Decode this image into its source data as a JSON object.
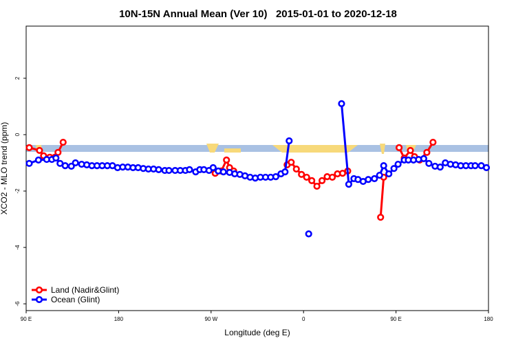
{
  "chart_data": {
    "type": "line",
    "title": "10N-15N Annual Mean (Ver 10)   2015-01-01 to 2020-12-18",
    "x_label": "Longitude (deg E)",
    "y_label": "XCO2 - MLO trend (ppm)",
    "xlim": [
      90,
      540
    ],
    "xticks": [
      {
        "value": 90,
        "label": "90 E"
      },
      {
        "value": 180,
        "label": "180"
      },
      {
        "value": 270,
        "label": "90 W"
      },
      {
        "value": 360,
        "label": "0"
      },
      {
        "value": 450,
        "label": "90 E"
      },
      {
        "value": 540,
        "label": "180"
      }
    ],
    "ylim": [
      -6.24,
      3.85
    ],
    "yticks": [
      -6,
      -4,
      -2,
      0,
      2
    ],
    "legend": "bottom-left",
    "series": [
      {
        "name": "Land (Nadir&Glint)",
        "color": "#ff0000",
        "x": [
          93,
          103,
          107,
          113,
          118,
          121,
          126,
          200,
          274,
          280,
          285,
          288,
          292,
          320,
          344,
          348,
          353,
          358,
          363,
          368,
          373,
          378,
          383,
          388,
          393,
          398,
          403,
          420,
          435,
          438,
          445,
          453,
          458,
          464,
          468,
          473,
          480,
          486
        ],
        "values": [
          -0.46,
          -0.56,
          -0.75,
          -0.8,
          -0.8,
          -0.63,
          -0.27,
          null,
          -1.37,
          -1.29,
          -0.9,
          -1.17,
          -1.29,
          null,
          -1.07,
          -0.98,
          -1.22,
          -1.41,
          -1.51,
          -1.63,
          -1.83,
          -1.63,
          -1.49,
          -1.51,
          -1.39,
          -1.37,
          -1.29,
          null,
          -2.93,
          -1.51,
          null,
          -0.46,
          -0.83,
          -0.56,
          -0.78,
          -0.9,
          -0.63,
          -0.27
        ]
      },
      {
        "name": "Ocean (Glint)",
        "color": "#0000ff",
        "x": [
          93,
          102,
          110,
          115,
          119,
          123,
          128,
          134,
          138,
          144,
          149,
          154,
          159,
          164,
          169,
          174,
          179,
          184,
          189,
          194,
          199,
          204,
          209,
          214,
          219,
          225,
          229,
          235,
          240,
          245,
          249,
          255,
          259,
          263,
          268,
          272,
          277,
          282,
          288,
          293,
          298,
          303,
          308,
          313,
          318,
          323,
          328,
          333,
          338,
          342,
          346,
          355,
          365,
          380,
          397,
          404,
          409,
          413,
          418,
          423,
          429,
          434,
          438,
          443,
          448,
          452,
          458,
          462,
          467,
          472,
          477,
          482,
          488,
          493,
          498,
          503,
          508,
          513,
          518,
          523,
          527,
          533,
          538
        ],
        "values": [
          -1.02,
          -0.9,
          -0.88,
          -0.88,
          -0.83,
          -1.02,
          -1.1,
          -1.12,
          -1.0,
          -1.05,
          -1.07,
          -1.1,
          -1.1,
          -1.1,
          -1.1,
          -1.1,
          -1.17,
          -1.15,
          -1.15,
          -1.17,
          -1.17,
          -1.2,
          -1.22,
          -1.22,
          -1.24,
          -1.27,
          -1.27,
          -1.27,
          -1.27,
          -1.27,
          -1.24,
          -1.32,
          -1.24,
          -1.24,
          -1.27,
          -1.17,
          -1.29,
          -1.32,
          -1.34,
          -1.39,
          -1.41,
          -1.46,
          -1.51,
          -1.54,
          -1.51,
          -1.51,
          -1.51,
          -1.49,
          -1.39,
          -1.32,
          -0.22,
          null,
          -3.52,
          null,
          1.1,
          -1.76,
          -1.56,
          -1.59,
          -1.66,
          -1.59,
          -1.56,
          -1.44,
          -1.1,
          -1.39,
          -1.2,
          -1.05,
          -0.9,
          -0.9,
          -0.9,
          -0.88,
          -0.85,
          -1.02,
          -1.12,
          -1.15,
          -1.0,
          -1.05,
          -1.07,
          -1.1,
          -1.1,
          -1.1,
          -1.1,
          -1.1,
          -1.17
        ]
      }
    ]
  }
}
